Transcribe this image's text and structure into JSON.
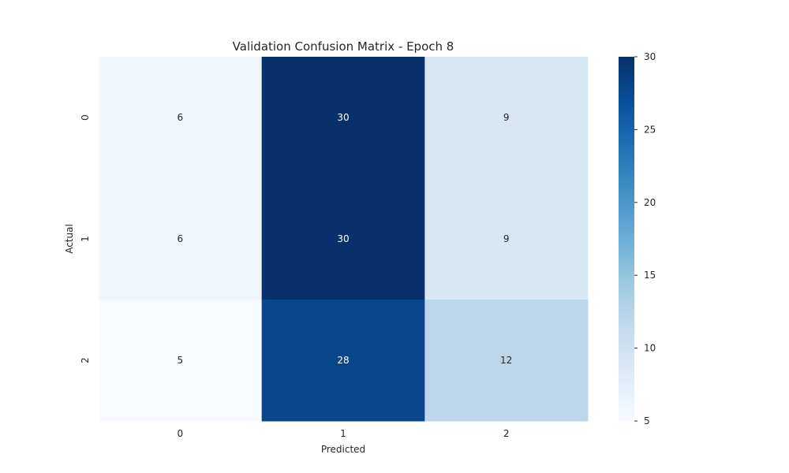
{
  "chart_data": {
    "type": "heatmap",
    "title": "Validation Confusion Matrix - Epoch 8",
    "xlabel": "Predicted",
    "ylabel": "Actual",
    "x_categories": [
      "0",
      "1",
      "2"
    ],
    "y_categories": [
      "0",
      "1",
      "2"
    ],
    "values": [
      [
        6,
        30,
        9
      ],
      [
        6,
        30,
        9
      ],
      [
        5,
        28,
        12
      ]
    ],
    "colorbar": {
      "min": 5,
      "max": 30,
      "ticks": [
        5,
        10,
        15,
        20,
        25,
        30
      ]
    },
    "colormap": "Blues",
    "grid": false,
    "legend": "right"
  }
}
